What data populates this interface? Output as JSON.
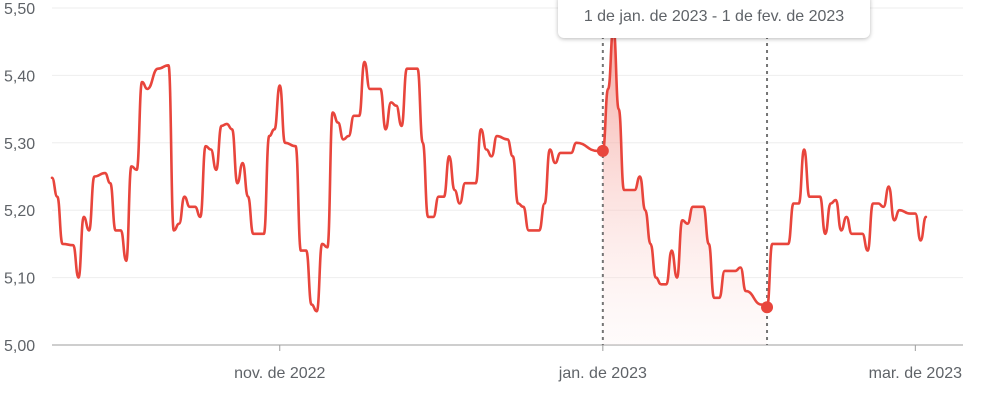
{
  "colors": {
    "line": "#e8453c",
    "fill": "#f6b3ad",
    "grid": "#eeeeee",
    "axis": "#9e9e9e",
    "guide": "#757575",
    "text": "#5f6368"
  },
  "tooltip": {
    "range_label": "1 de jan. de 2023 - 1 de fev. de 2023"
  },
  "chart_data": {
    "type": "line",
    "title": "",
    "xlabel": "",
    "ylabel": "",
    "ylim": [
      5.0,
      5.5
    ],
    "yticks": [
      {
        "value": 5.0,
        "label": "5,00"
      },
      {
        "value": 5.1,
        "label": "5,10"
      },
      {
        "value": 5.2,
        "label": "5,20"
      },
      {
        "value": 5.3,
        "label": "5,30"
      },
      {
        "value": 5.4,
        "label": "5,40"
      },
      {
        "value": 5.5,
        "label": "5,50"
      }
    ],
    "xlim": [
      "2022-09-19",
      "2023-03-10"
    ],
    "xticks": [
      {
        "date": "2022-11-01",
        "label": "nov. de 2022"
      },
      {
        "date": "2023-01-01",
        "label": "jan. de 2023"
      },
      {
        "date": "2023-03-01",
        "label": "mar. de 2023"
      }
    ],
    "grid": true,
    "highlight": {
      "start": {
        "date": "2023-01-01",
        "value": 5.288
      },
      "end": {
        "date": "2023-02-01",
        "value": 5.056
      }
    },
    "series": [
      {
        "points": [
          [
            "2022-09-19",
            5.248
          ],
          [
            "2022-09-20",
            5.22
          ],
          [
            "2022-09-21",
            5.15
          ],
          [
            "2022-09-23",
            5.148
          ],
          [
            "2022-09-24",
            5.1
          ],
          [
            "2022-09-25",
            5.19
          ],
          [
            "2022-09-26",
            5.17
          ],
          [
            "2022-09-27",
            5.25
          ],
          [
            "2022-09-29",
            5.255
          ],
          [
            "2022-09-30",
            5.24
          ],
          [
            "2022-10-01",
            5.17
          ],
          [
            "2022-10-02",
            5.17
          ],
          [
            "2022-10-03",
            5.125
          ],
          [
            "2022-10-04",
            5.265
          ],
          [
            "2022-10-05",
            5.26
          ],
          [
            "2022-10-06",
            5.39
          ],
          [
            "2022-10-07",
            5.38
          ],
          [
            "2022-10-09",
            5.41
          ],
          [
            "2022-10-11",
            5.415
          ],
          [
            "2022-10-12",
            5.17
          ],
          [
            "2022-10-13",
            5.18
          ],
          [
            "2022-10-14",
            5.22
          ],
          [
            "2022-10-15",
            5.205
          ],
          [
            "2022-10-16",
            5.205
          ],
          [
            "2022-10-17",
            5.19
          ],
          [
            "2022-10-18",
            5.295
          ],
          [
            "2022-10-19",
            5.29
          ],
          [
            "2022-10-20",
            5.26
          ],
          [
            "2022-10-21",
            5.325
          ],
          [
            "2022-10-22",
            5.328
          ],
          [
            "2022-10-23",
            5.32
          ],
          [
            "2022-10-24",
            5.24
          ],
          [
            "2022-10-25",
            5.27
          ],
          [
            "2022-10-26",
            5.22
          ],
          [
            "2022-10-27",
            5.165
          ],
          [
            "2022-10-29",
            5.165
          ],
          [
            "2022-10-30",
            5.31
          ],
          [
            "2022-10-31",
            5.32
          ],
          [
            "2022-11-01",
            5.385
          ],
          [
            "2022-11-02",
            5.3
          ],
          [
            "2022-11-04",
            5.295
          ],
          [
            "2022-11-05",
            5.14
          ],
          [
            "2022-11-06",
            5.14
          ],
          [
            "2022-11-07",
            5.06
          ],
          [
            "2022-11-08",
            5.05
          ],
          [
            "2022-11-09",
            5.15
          ],
          [
            "2022-11-10",
            5.145
          ],
          [
            "2022-11-11",
            5.345
          ],
          [
            "2022-11-12",
            5.33
          ],
          [
            "2022-11-13",
            5.305
          ],
          [
            "2022-11-14",
            5.31
          ],
          [
            "2022-11-15",
            5.34
          ],
          [
            "2022-11-16",
            5.34
          ],
          [
            "2022-11-17",
            5.42
          ],
          [
            "2022-11-18",
            5.38
          ],
          [
            "2022-11-20",
            5.38
          ],
          [
            "2022-11-21",
            5.32
          ],
          [
            "2022-11-22",
            5.36
          ],
          [
            "2022-11-23",
            5.355
          ],
          [
            "2022-11-24",
            5.325
          ],
          [
            "2022-11-25",
            5.41
          ],
          [
            "2022-11-27",
            5.41
          ],
          [
            "2022-11-28",
            5.3
          ],
          [
            "2022-11-29",
            5.19
          ],
          [
            "2022-11-30",
            5.19
          ],
          [
            "2022-12-01",
            5.22
          ],
          [
            "2022-12-02",
            5.22
          ],
          [
            "2022-12-03",
            5.28
          ],
          [
            "2022-12-04",
            5.23
          ],
          [
            "2022-12-05",
            5.21
          ],
          [
            "2022-12-06",
            5.24
          ],
          [
            "2022-12-08",
            5.24
          ],
          [
            "2022-12-09",
            5.32
          ],
          [
            "2022-12-10",
            5.29
          ],
          [
            "2022-12-11",
            5.28
          ],
          [
            "2022-12-12",
            5.31
          ],
          [
            "2022-12-14",
            5.305
          ],
          [
            "2022-12-15",
            5.28
          ],
          [
            "2022-12-16",
            5.21
          ],
          [
            "2022-12-17",
            5.205
          ],
          [
            "2022-12-18",
            5.17
          ],
          [
            "2022-12-20",
            5.17
          ],
          [
            "2022-12-21",
            5.21
          ],
          [
            "2022-12-22",
            5.29
          ],
          [
            "2022-12-23",
            5.27
          ],
          [
            "2022-12-24",
            5.285
          ],
          [
            "2022-12-26",
            5.285
          ],
          [
            "2022-12-27",
            5.3
          ],
          [
            "2022-12-31",
            5.288
          ],
          [
            "2023-01-01",
            5.288
          ],
          [
            "2023-01-02",
            5.38
          ],
          [
            "2023-01-03",
            5.47
          ],
          [
            "2023-01-04",
            5.35
          ],
          [
            "2023-01-05",
            5.23
          ],
          [
            "2023-01-07",
            5.23
          ],
          [
            "2023-01-08",
            5.25
          ],
          [
            "2023-01-09",
            5.2
          ],
          [
            "2023-01-10",
            5.15
          ],
          [
            "2023-01-11",
            5.1
          ],
          [
            "2023-01-12",
            5.09
          ],
          [
            "2023-01-13",
            5.09
          ],
          [
            "2023-01-14",
            5.14
          ],
          [
            "2023-01-15",
            5.1
          ],
          [
            "2023-01-16",
            5.185
          ],
          [
            "2023-01-17",
            5.18
          ],
          [
            "2023-01-18",
            5.205
          ],
          [
            "2023-01-20",
            5.205
          ],
          [
            "2023-01-21",
            5.15
          ],
          [
            "2023-01-22",
            5.07
          ],
          [
            "2023-01-23",
            5.07
          ],
          [
            "2023-01-24",
            5.11
          ],
          [
            "2023-01-26",
            5.11
          ],
          [
            "2023-01-27",
            5.115
          ],
          [
            "2023-01-28",
            5.08
          ],
          [
            "2023-01-31",
            5.06
          ],
          [
            "2023-02-01",
            5.056
          ],
          [
            "2023-02-02",
            5.15
          ],
          [
            "2023-02-04",
            5.15
          ],
          [
            "2023-02-05",
            5.15
          ],
          [
            "2023-02-06",
            5.21
          ],
          [
            "2023-02-07",
            5.21
          ],
          [
            "2023-02-08",
            5.29
          ],
          [
            "2023-02-09",
            5.22
          ],
          [
            "2023-02-11",
            5.22
          ],
          [
            "2023-02-12",
            5.165
          ],
          [
            "2023-02-13",
            5.21
          ],
          [
            "2023-02-14",
            5.215
          ],
          [
            "2023-02-15",
            5.17
          ],
          [
            "2023-02-16",
            5.19
          ],
          [
            "2023-02-17",
            5.165
          ],
          [
            "2023-02-19",
            5.165
          ],
          [
            "2023-02-20",
            5.14
          ],
          [
            "2023-02-21",
            5.21
          ],
          [
            "2023-02-22",
            5.21
          ],
          [
            "2023-02-23",
            5.205
          ],
          [
            "2023-02-24",
            5.235
          ],
          [
            "2023-02-25",
            5.185
          ],
          [
            "2023-02-26",
            5.2
          ],
          [
            "2023-02-28",
            5.195
          ],
          [
            "2023-03-01",
            5.195
          ],
          [
            "2023-03-02",
            5.155
          ],
          [
            "2023-03-03",
            5.19
          ]
        ]
      }
    ]
  }
}
